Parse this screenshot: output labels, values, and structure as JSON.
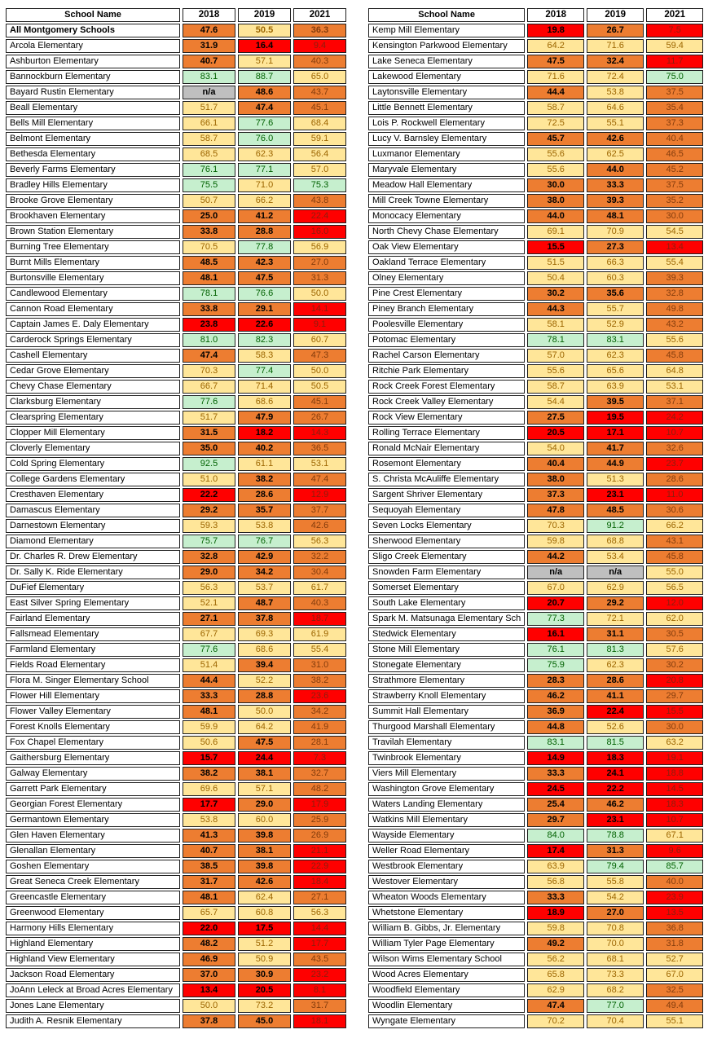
{
  "chart_data": {
    "type": "heatmap",
    "tables": [
      {
        "header": [
          "School Name",
          "2018",
          "2019",
          "2021"
        ],
        "bold_rows": [
          0
        ],
        "rows": [
          [
            "All Montgomery Schools",
            "47.6",
            "50.5",
            "36.3"
          ],
          [
            "Arcola Elementary",
            "31.9",
            "16.4",
            "9.4"
          ],
          [
            "Ashburton Elementary",
            "40.7",
            "57.1",
            "40.3"
          ],
          [
            "Bannockburn Elementary",
            "83.1",
            "88.7",
            "65.0"
          ],
          [
            "Bayard Rustin Elementary",
            "n/a",
            "48.6",
            "43.7"
          ],
          [
            "Beall Elementary",
            "51.7",
            "47.4",
            "45.1"
          ],
          [
            "Bells Mill Elementary",
            "66.1",
            "77.6",
            "68.4"
          ],
          [
            "Belmont Elementary",
            "58.7",
            "76.0",
            "59.1"
          ],
          [
            "Bethesda Elementary",
            "68.5",
            "62.3",
            "56.4"
          ],
          [
            "Beverly Farms Elementary",
            "76.1",
            "77.1",
            "57.0"
          ],
          [
            "Bradley Hills Elementary",
            "75.5",
            "71.0",
            "75.3"
          ],
          [
            "Brooke Grove Elementary",
            "50.7",
            "66.2",
            "43.8"
          ],
          [
            "Brookhaven Elementary",
            "25.0",
            "41.2",
            "22.4"
          ],
          [
            "Brown Station Elementary",
            "33.8",
            "28.8",
            "16.0"
          ],
          [
            "Burning Tree Elementary",
            "70.5",
            "77.8",
            "56.9"
          ],
          [
            "Burnt Mills Elementary",
            "48.5",
            "42.3",
            "27.0"
          ],
          [
            "Burtonsville Elementary",
            "48.1",
            "47.5",
            "31.3"
          ],
          [
            "Candlewood Elementary",
            "78.1",
            "76.6",
            "50.0"
          ],
          [
            "Cannon Road Elementary",
            "33.8",
            "29.1",
            "14.1"
          ],
          [
            "Captain James E. Daly Elementary",
            "23.8",
            "22.6",
            "9.1"
          ],
          [
            "Carderock Springs Elementary",
            "81.0",
            "82.3",
            "60.7"
          ],
          [
            "Cashell Elementary",
            "47.4",
            "58.3",
            "47.3"
          ],
          [
            "Cedar Grove Elementary",
            "70.3",
            "77.4",
            "50.0"
          ],
          [
            "Chevy Chase Elementary",
            "66.7",
            "71.4",
            "50.5"
          ],
          [
            "Clarksburg Elementary",
            "77.6",
            "68.6",
            "45.1"
          ],
          [
            "Clearspring Elementary",
            "51.7",
            "47.9",
            "26.7"
          ],
          [
            "Clopper Mill Elementary",
            "31.5",
            "18.2",
            "14.3"
          ],
          [
            "Cloverly Elementary",
            "35.0",
            "40.2",
            "36.5"
          ],
          [
            "Cold Spring Elementary",
            "92.5",
            "61.1",
            "53.1"
          ],
          [
            "College Gardens Elementary",
            "51.0",
            "38.2",
            "47.4"
          ],
          [
            "Cresthaven Elementary",
            "22.2",
            "28.6",
            "12.9"
          ],
          [
            "Damascus Elementary",
            "29.2",
            "35.7",
            "37.7"
          ],
          [
            "Darnestown Elementary",
            "59.3",
            "53.8",
            "42.6"
          ],
          [
            "Diamond Elementary",
            "75.7",
            "76.7",
            "56.3"
          ],
          [
            "Dr. Charles R. Drew Elementary",
            "32.8",
            "42.9",
            "32.2"
          ],
          [
            "Dr. Sally K. Ride Elementary",
            "29.0",
            "34.2",
            "30.4"
          ],
          [
            "DuFief Elementary",
            "56.3",
            "53.7",
            "61.7"
          ],
          [
            "East Silver Spring Elementary",
            "52.1",
            "48.7",
            "40.3"
          ],
          [
            "Fairland Elementary",
            "27.1",
            "37.8",
            "18.7"
          ],
          [
            "Fallsmead Elementary",
            "67.7",
            "69.3",
            "61.9"
          ],
          [
            "Farmland Elementary",
            "77.6",
            "68.6",
            "55.4"
          ],
          [
            "Fields Road Elementary",
            "51.4",
            "39.4",
            "31.0"
          ],
          [
            "Flora M. Singer Elementary School",
            "44.4",
            "52.2",
            "38.2"
          ],
          [
            "Flower Hill Elementary",
            "33.3",
            "28.8",
            "23.6"
          ],
          [
            "Flower Valley Elementary",
            "48.1",
            "50.0",
            "34.2"
          ],
          [
            "Forest Knolls Elementary",
            "59.9",
            "64.2",
            "41.9"
          ],
          [
            "Fox Chapel Elementary",
            "50.6",
            "47.5",
            "28.1"
          ],
          [
            "Gaithersburg Elementary",
            "15.7",
            "24.4",
            "7.3"
          ],
          [
            "Galway Elementary",
            "38.2",
            "38.1",
            "32.7"
          ],
          [
            "Garrett Park Elementary",
            "69.6",
            "57.1",
            "48.2"
          ],
          [
            "Georgian Forest Elementary",
            "17.7",
            "29.0",
            "17.9"
          ],
          [
            "Germantown Elementary",
            "53.8",
            "60.0",
            "25.9"
          ],
          [
            "Glen Haven Elementary",
            "41.3",
            "39.8",
            "26.9"
          ],
          [
            "Glenallan Elementary",
            "40.7",
            "38.1",
            "21.1"
          ],
          [
            "Goshen Elementary",
            "38.5",
            "39.8",
            "22.9"
          ],
          [
            "Great Seneca Creek Elementary",
            "31.7",
            "42.6",
            "18.4"
          ],
          [
            "Greencastle Elementary",
            "48.1",
            "62.4",
            "27.1"
          ],
          [
            "Greenwood Elementary",
            "65.7",
            "60.8",
            "56.3"
          ],
          [
            "Harmony Hills Elementary",
            "22.0",
            "17.5",
            "14.4"
          ],
          [
            "Highland Elementary",
            "48.2",
            "51.2",
            "17.7"
          ],
          [
            "Highland View Elementary",
            "46.9",
            "50.9",
            "43.5"
          ],
          [
            "Jackson Road Elementary",
            "37.0",
            "30.9",
            "23.2"
          ],
          [
            "JoAnn Leleck at Broad Acres Elementary",
            "13.4",
            "20.5",
            "8.1"
          ],
          [
            "Jones Lane Elementary",
            "50.0",
            "73.2",
            "31.7"
          ],
          [
            "Judith A. Resnik Elementary",
            "37.8",
            "45.0",
            "18.1"
          ]
        ]
      },
      {
        "header": [
          "School Name",
          "2018",
          "2019",
          "2021"
        ],
        "bold_rows": [],
        "rows": [
          [
            "Kemp Mill Elementary",
            "19.8",
            "26.7",
            "7.5"
          ],
          [
            "Kensington Parkwood Elementary",
            "64.2",
            "71.6",
            "59.4"
          ],
          [
            "Lake Seneca Elementary",
            "47.5",
            "32.4",
            "11.7"
          ],
          [
            "Lakewood Elementary",
            "71.6",
            "72.4",
            "75.0"
          ],
          [
            "Laytonsville Elementary",
            "44.4",
            "53.8",
            "37.5"
          ],
          [
            "Little Bennett Elementary",
            "58.7",
            "64.6",
            "35.4"
          ],
          [
            "Lois P. Rockwell Elementary",
            "72.5",
            "55.1",
            "37.3"
          ],
          [
            "Lucy V. Barnsley Elementary",
            "45.7",
            "42.6",
            "40.4"
          ],
          [
            "Luxmanor Elementary",
            "55.6",
            "62.5",
            "46.5"
          ],
          [
            "Maryvale Elementary",
            "55.6",
            "44.0",
            "45.2"
          ],
          [
            "Meadow Hall Elementary",
            "30.0",
            "33.3",
            "37.5"
          ],
          [
            "Mill Creek Towne Elementary",
            "38.0",
            "39.3",
            "35.2"
          ],
          [
            "Monocacy Elementary",
            "44.0",
            "48.1",
            "30.0"
          ],
          [
            "North Chevy Chase Elementary",
            "69.1",
            "70.9",
            "54.5"
          ],
          [
            "Oak View Elementary",
            "15.5",
            "27.3",
            "13.4"
          ],
          [
            "Oakland Terrace Elementary",
            "51.5",
            "66.3",
            "55.4"
          ],
          [
            "Olney Elementary",
            "50.4",
            "60.3",
            "39.3"
          ],
          [
            "Pine Crest Elementary",
            "30.2",
            "35.6",
            "32.8"
          ],
          [
            "Piney Branch Elementary",
            "44.3",
            "55.7",
            "49.8"
          ],
          [
            "Poolesville Elementary",
            "58.1",
            "52.9",
            "43.2"
          ],
          [
            "Potomac Elementary",
            "78.1",
            "83.1",
            "55.6"
          ],
          [
            "Rachel Carson Elementary",
            "57.0",
            "62.3",
            "45.8"
          ],
          [
            "Ritchie Park Elementary",
            "55.6",
            "65.6",
            "64.8"
          ],
          [
            "Rock Creek Forest Elementary",
            "58.7",
            "63.9",
            "53.1"
          ],
          [
            "Rock Creek Valley Elementary",
            "54.4",
            "39.5",
            "37.1"
          ],
          [
            "Rock View Elementary",
            "27.5",
            "19.5",
            "24.2"
          ],
          [
            "Rolling Terrace Elementary",
            "20.5",
            "17.1",
            "10.7"
          ],
          [
            "Ronald McNair Elementary",
            "54.0",
            "41.7",
            "32.6"
          ],
          [
            "Rosemont Elementary",
            "40.4",
            "44.9",
            "23.7"
          ],
          [
            "S. Christa McAuliffe Elementary",
            "38.0",
            "51.3",
            "28.6"
          ],
          [
            "Sargent Shriver Elementary",
            "37.3",
            "23.1",
            "11.0"
          ],
          [
            "Sequoyah Elementary",
            "47.8",
            "48.5",
            "30.6"
          ],
          [
            "Seven Locks Elementary",
            "70.3",
            "91.2",
            "66.2"
          ],
          [
            "Sherwood Elementary",
            "59.8",
            "68.8",
            "43.1"
          ],
          [
            "Sligo Creek Elementary",
            "44.2",
            "53.4",
            "45.8"
          ],
          [
            "Snowden Farm Elementary",
            "n/a",
            "n/a",
            "55.0"
          ],
          [
            "Somerset Elementary",
            "67.0",
            "62.9",
            "56.5"
          ],
          [
            "South Lake Elementary",
            "20.7",
            "29.2",
            "12.0"
          ],
          [
            "Spark M. Matsunaga Elementary Sch",
            "77.3",
            "72.1",
            "62.0"
          ],
          [
            "Stedwick Elementary",
            "16.1",
            "31.1",
            "30.5"
          ],
          [
            "Stone Mill Elementary",
            "76.1",
            "81.3",
            "57.6"
          ],
          [
            "Stonegate Elementary",
            "75.9",
            "62.3",
            "30.2"
          ],
          [
            "Strathmore Elementary",
            "28.3",
            "28.6",
            "20.8"
          ],
          [
            "Strawberry Knoll Elementary",
            "46.2",
            "41.1",
            "29.7"
          ],
          [
            "Summit Hall Elementary",
            "36.9",
            "22.4",
            "15.5"
          ],
          [
            "Thurgood Marshall Elementary",
            "44.8",
            "52.6",
            "30.0"
          ],
          [
            "Travilah Elementary",
            "83.1",
            "81.5",
            "63.2"
          ],
          [
            "Twinbrook Elementary",
            "14.9",
            "18.3",
            "19.1"
          ],
          [
            "Viers Mill Elementary",
            "33.3",
            "24.1",
            "18.8"
          ],
          [
            "Washington Grove Elementary",
            "24.5",
            "22.2",
            "14.5"
          ],
          [
            "Waters Landing Elementary",
            "25.4",
            "46.2",
            "18.3"
          ],
          [
            "Watkins Mill Elementary",
            "29.7",
            "23.1",
            "10.7"
          ],
          [
            "Wayside Elementary",
            "84.0",
            "78.8",
            "67.1"
          ],
          [
            "Weller Road Elementary",
            "17.4",
            "31.3",
            "9.6"
          ],
          [
            "Westbrook Elementary",
            "63.9",
            "79.4",
            "85.7"
          ],
          [
            "Westover Elementary",
            "56.8",
            "55.8",
            "40.0"
          ],
          [
            "Wheaton Woods Elementary",
            "33.3",
            "54.2",
            "23.9"
          ],
          [
            "Whetstone Elementary",
            "18.9",
            "27.0",
            "13.5"
          ],
          [
            "William B. Gibbs, Jr. Elementary",
            "59.8",
            "70.8",
            "36.8"
          ],
          [
            "William Tyler Page Elementary",
            "49.2",
            "70.0",
            "31.8"
          ],
          [
            "Wilson Wims Elementary School",
            "56.2",
            "68.1",
            "52.7"
          ],
          [
            "Wood Acres Elementary",
            "65.8",
            "73.3",
            "67.0"
          ],
          [
            "Woodfield Elementary",
            "62.9",
            "68.2",
            "32.5"
          ],
          [
            "Woodlin Elementary",
            "47.4",
            "77.0",
            "49.4"
          ],
          [
            "Wyngate Elementary",
            "70.2",
            "70.4",
            "55.1"
          ]
        ]
      }
    ],
    "color_scale": {
      "red": {
        "range": "value < 25",
        "fill": "#FF0000"
      },
      "orange": {
        "range": "25 <= value < 50",
        "fill": "#ED7D31"
      },
      "yellow": {
        "range": "50 <= value < 75",
        "fill": "#FFE699"
      },
      "green": {
        "range": "value >= 75",
        "fill": "#C6EFCE"
      },
      "na": {
        "label": "n/a",
        "fill": "#BFBFBF"
      }
    },
    "text_colors": {
      "dark_yellow": "#9C6500",
      "dark_green": "#006100",
      "dark_brown_2021": "#843C0C",
      "dark_red_2021": "#8B1E0E",
      "black": "#000000"
    }
  }
}
